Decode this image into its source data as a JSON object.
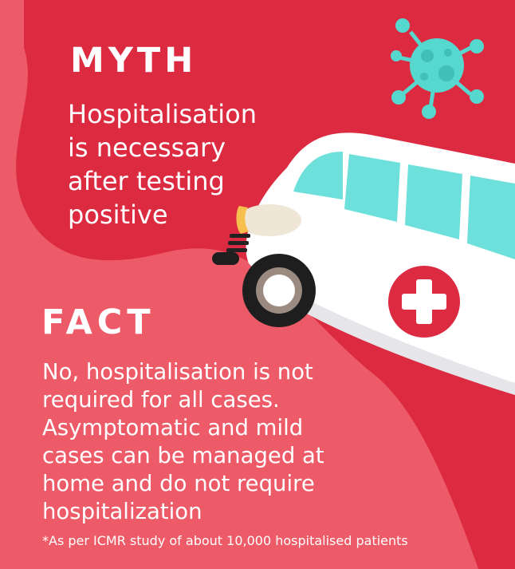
{
  "myth": {
    "heading": "MYTH",
    "lines": [
      "Hospitalisation",
      "is necessary",
      "after testing",
      "positive"
    ]
  },
  "fact": {
    "heading": "FACT",
    "lines": [
      "No, hospitalisation is not",
      "required for all cases.",
      "Asymptomatic and mild",
      "cases can be managed at",
      "home and do not require",
      "hospitalization"
    ]
  },
  "footnote": "*As per ICMR study of about 10,000 hospitalised patients",
  "colors": {
    "background_light_red": "#ee5b68",
    "background_dark_red": "#dc2a41",
    "virus": "#56d8cf",
    "ambulance_body": "#ffffff",
    "ambulance_window": "#6ee0dc",
    "cross_circle": "#dc2a41"
  },
  "icons": [
    "virus-icon",
    "ambulance-illustration",
    "medical-cross-icon"
  ]
}
